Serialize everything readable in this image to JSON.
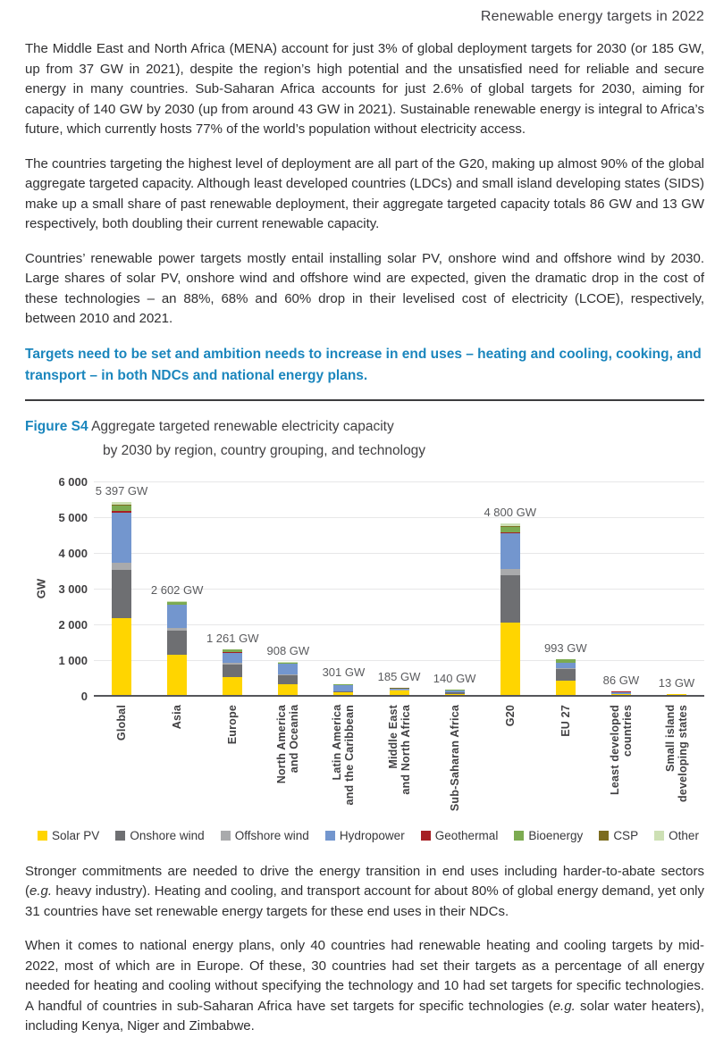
{
  "page": {
    "header": "Renewable energy targets in 2022",
    "paragraphs": [
      "The Middle East and North Africa (MENA) account for just 3% of global deployment targets for 2030 (or 185 GW, up from 37 GW in 2021), despite the region’s high potential and the unsatisfied need for reliable and secure energy in many countries. Sub-Saharan Africa accounts for just 2.6% of global targets for 2030, aiming for capacity of 140 GW by 2030 (up from around 43 GW in 2021). Sustainable renewable energy is integral to Africa’s future, which currently hosts 77% of the world’s population without electricity access.",
      "The countries targeting the highest level of deployment are all part of the G20, making up almost 90% of the global aggregate targeted capacity. Although least developed countries (LDCs) and small island developing states (SIDS) make up a small share of past renewable deployment, their aggregate targeted capacity totals 86 GW and 13 GW respectively, both doubling their current renewable capacity.",
      "Countries’ renewable power targets mostly entail installing solar PV, onshore wind and offshore wind by 2030. Large shares of solar PV, onshore wind and offshore wind are expected, given the dramatic drop in the cost of these technologies – an 88%, 68% and 60% drop in their levelised cost of electricity (LCOE), respectively, between 2010 and 2021."
    ],
    "highlight_paragraph": "Targets need to be set and ambition needs to increase in end uses – heating and cooling, cooking, and transport – in both NDCs and national energy plans.",
    "figure": {
      "label": "Figure S4",
      "title_line1": "Aggregate targeted renewable electricity capacity",
      "title_line2": "by 2030 by region, country grouping, and technology"
    },
    "bottom_paragraphs": [
      [
        {
          "t": "Stronger commitments are needed to drive the energy transition in end uses including harder-to-abate sectors (",
          "i": false
        },
        {
          "t": "e.g.",
          "i": true
        },
        {
          "t": " heavy industry). Heating and cooling, and transport account for about 80% of global energy demand, yet only 31 countries have set renewable energy targets for these end uses in their NDCs.",
          "i": false
        }
      ],
      [
        {
          "t": "When it comes to national energy plans, only 40 countries had renewable heating and cooling targets by mid-2022, most of which are in Europe. Of these, 30 countries had set their targets as a percentage of all energy needed for heating and cooling without specifying the technology and 10 had set targets for specific technologies. A handful of countries in sub-Saharan Africa have set targets for specific technologies (",
          "i": false
        },
        {
          "t": "e.g.",
          "i": true
        },
        {
          "t": " solar water heaters), including Kenya, Niger and Zimbabwe.",
          "i": false
        }
      ]
    ]
  },
  "chart_data": {
    "type": "bar",
    "stacked": true,
    "title": "Aggregate targeted renewable electricity capacity by 2030 by region, country grouping, and technology",
    "xlabel": "",
    "ylabel": "GW",
    "ylim": [
      0,
      6000
    ],
    "grid": true,
    "legend_position": "bottom",
    "yticks": [
      {
        "value": 0,
        "label": "0"
      },
      {
        "value": 1000,
        "label": "1 000"
      },
      {
        "value": 2000,
        "label": "2 000"
      },
      {
        "value": 3000,
        "label": "3 000"
      },
      {
        "value": 4000,
        "label": "4 000"
      },
      {
        "value": 5000,
        "label": "5 000"
      },
      {
        "value": 6000,
        "label": "6 000"
      }
    ],
    "categories": [
      "Global",
      "Asia",
      "Europe",
      "North America\nand Oceania",
      "Latin America\nand the Caribbean",
      "Middle East\nand North Africa",
      "Sub-Saharan Africa",
      "G20",
      "EU 27",
      "Least developed\ncountries",
      "Small island\ndeveloping states"
    ],
    "totals": [
      5397,
      2602,
      1261,
      908,
      301,
      185,
      140,
      4800,
      993,
      86,
      13
    ],
    "total_labels": [
      "5 397 GW",
      "2 602 GW",
      "1 261 GW",
      "908 GW",
      "301 GW",
      "185 GW",
      "140 GW",
      "4 800 GW",
      "993 GW",
      "86 GW",
      "13 GW"
    ],
    "series": [
      {
        "name": "Solar PV",
        "color": "#ffd500",
        "values": [
          2150,
          1120,
          480,
          300,
          55,
          110,
          25,
          2020,
          380,
          15,
          4
        ]
      },
      {
        "name": "Onshore wind",
        "color": "#6e6f72",
        "values": [
          1350,
          680,
          370,
          250,
          25,
          15,
          30,
          1310,
          330,
          8,
          2
        ]
      },
      {
        "name": "Offshore wind",
        "color": "#a9aaac",
        "values": [
          200,
          75,
          45,
          25,
          2,
          2,
          1,
          180,
          40,
          1,
          0
        ]
      },
      {
        "name": "Hydropower",
        "color": "#7396ce",
        "values": [
          1400,
          630,
          280,
          290,
          180,
          25,
          60,
          1000,
          130,
          50,
          3
        ]
      },
      {
        "name": "Geothermal",
        "color": "#a62024",
        "values": [
          45,
          5,
          3,
          5,
          2,
          1,
          5,
          40,
          2,
          2,
          1
        ]
      },
      {
        "name": "Bioenergy",
        "color": "#7cab51",
        "values": [
          150,
          80,
          75,
          30,
          30,
          12,
          12,
          150,
          100,
          7,
          1
        ]
      },
      {
        "name": "CSP",
        "color": "#7c6c1f",
        "values": [
          22,
          2,
          1,
          1,
          1,
          15,
          2,
          20,
          1,
          0,
          0
        ]
      },
      {
        "name": "Other",
        "color": "#cde0b4",
        "values": [
          80,
          10,
          7,
          7,
          6,
          5,
          5,
          80,
          10,
          3,
          2
        ]
      }
    ]
  }
}
